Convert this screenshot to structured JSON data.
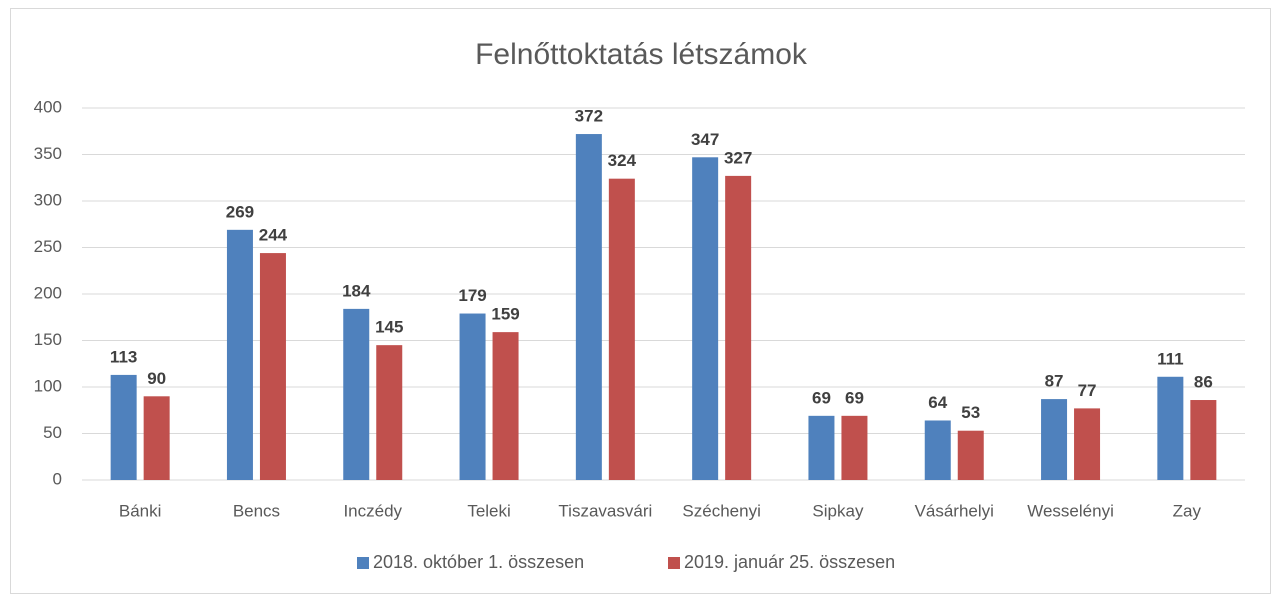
{
  "chart_data": {
    "type": "bar",
    "title": "Felnőttoktatás létszámok",
    "categories": [
      "Bánki",
      "Bencs",
      "Inczédy",
      "Teleki",
      "Tiszavasvári",
      "Széchenyi",
      "Sipkay",
      "Vásárhelyi",
      "Wesselényi",
      "Zay"
    ],
    "series": [
      {
        "name": "2018. október 1. összesen",
        "color": "#4f81bd",
        "values": [
          113,
          269,
          184,
          179,
          372,
          347,
          69,
          64,
          87,
          111
        ]
      },
      {
        "name": "2019. január 25. összesen",
        "color": "#c0504d",
        "values": [
          90,
          244,
          145,
          159,
          324,
          327,
          69,
          53,
          77,
          86
        ]
      }
    ],
    "ylim": [
      0,
      400
    ],
    "yticks": [
      0,
      50,
      100,
      150,
      200,
      250,
      300,
      350,
      400
    ],
    "grid": true,
    "legend": "bottom"
  }
}
